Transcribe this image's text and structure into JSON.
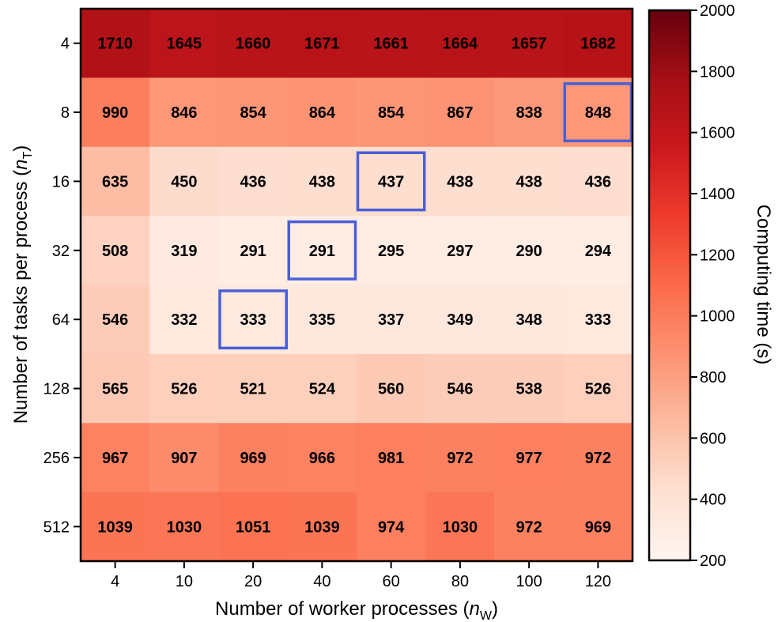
{
  "chart_data": {
    "type": "heatmap",
    "x_categories": [
      "4",
      "10",
      "20",
      "40",
      "60",
      "80",
      "100",
      "120"
    ],
    "y_categories": [
      "4",
      "8",
      "16",
      "32",
      "64",
      "128",
      "256",
      "512"
    ],
    "values": [
      [
        1710,
        1645,
        1660,
        1671,
        1661,
        1664,
        1657,
        1682
      ],
      [
        990,
        846,
        854,
        864,
        854,
        867,
        838,
        848
      ],
      [
        635,
        450,
        436,
        438,
        437,
        438,
        438,
        436
      ],
      [
        508,
        319,
        291,
        291,
        295,
        297,
        290,
        294
      ],
      [
        546,
        332,
        333,
        335,
        337,
        349,
        348,
        333
      ],
      [
        565,
        526,
        521,
        524,
        560,
        546,
        538,
        526
      ],
      [
        967,
        907,
        969,
        966,
        981,
        972,
        977,
        972
      ],
      [
        1039,
        1030,
        1051,
        1039,
        974,
        1030,
        972,
        969
      ]
    ],
    "highlighted_cells": [
      {
        "row": 1,
        "col": 7
      },
      {
        "row": 2,
        "col": 4
      },
      {
        "row": 3,
        "col": 3
      },
      {
        "row": 4,
        "col": 2
      }
    ],
    "highlight_color": "#4a5fd6",
    "xlabel": {
      "text": "Number of worker processes (",
      "var": "n",
      "sub": "W",
      "close": ")"
    },
    "ylabel": {
      "text": "Number of tasks per process (",
      "var": "n",
      "sub": "T",
      "close": ")"
    },
    "colorbar": {
      "label": "Computing time (s)",
      "range": [
        200,
        2000
      ],
      "ticks": [
        200,
        400,
        600,
        800,
        1000,
        1200,
        1400,
        1600,
        1800,
        2000
      ],
      "colormap": "Reds"
    }
  }
}
